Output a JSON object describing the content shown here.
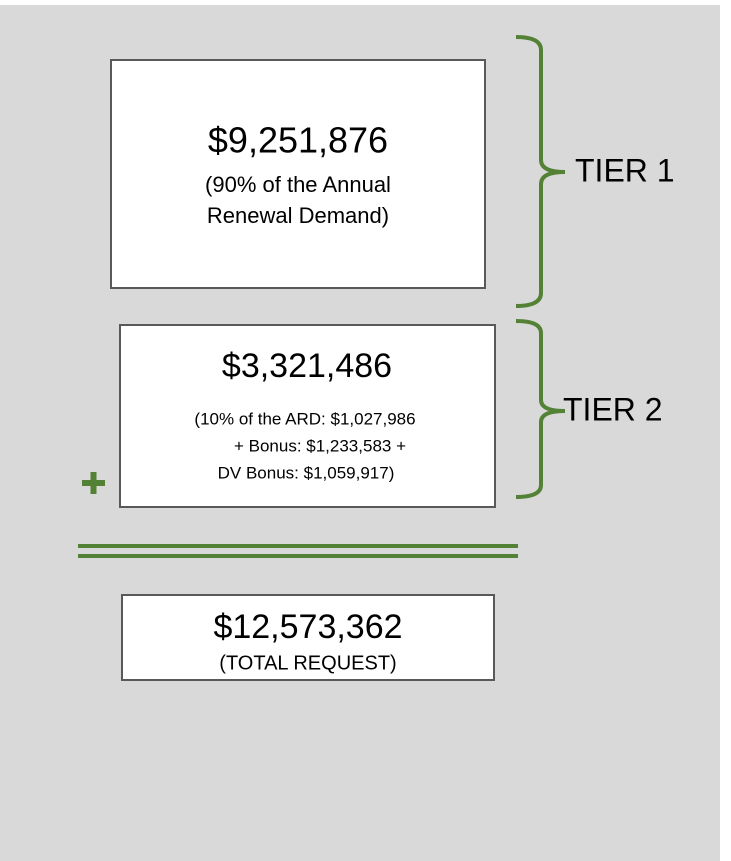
{
  "tier1": {
    "amount": "$9,251,876",
    "details": [
      "(90% of the Annual",
      "Renewal Demand)"
    ],
    "label": "TIER 1"
  },
  "tier2": {
    "amount": "$3,321,486",
    "details": [
      "(10% of the ARD: $1,027,986",
      "+ Bonus: $1,233,583 +",
      "DV Bonus: $1,059,917)"
    ],
    "label": "TIER 2"
  },
  "total": {
    "amount": "$12,573,362",
    "details": [
      "(TOTAL REQUEST)"
    ]
  }
}
